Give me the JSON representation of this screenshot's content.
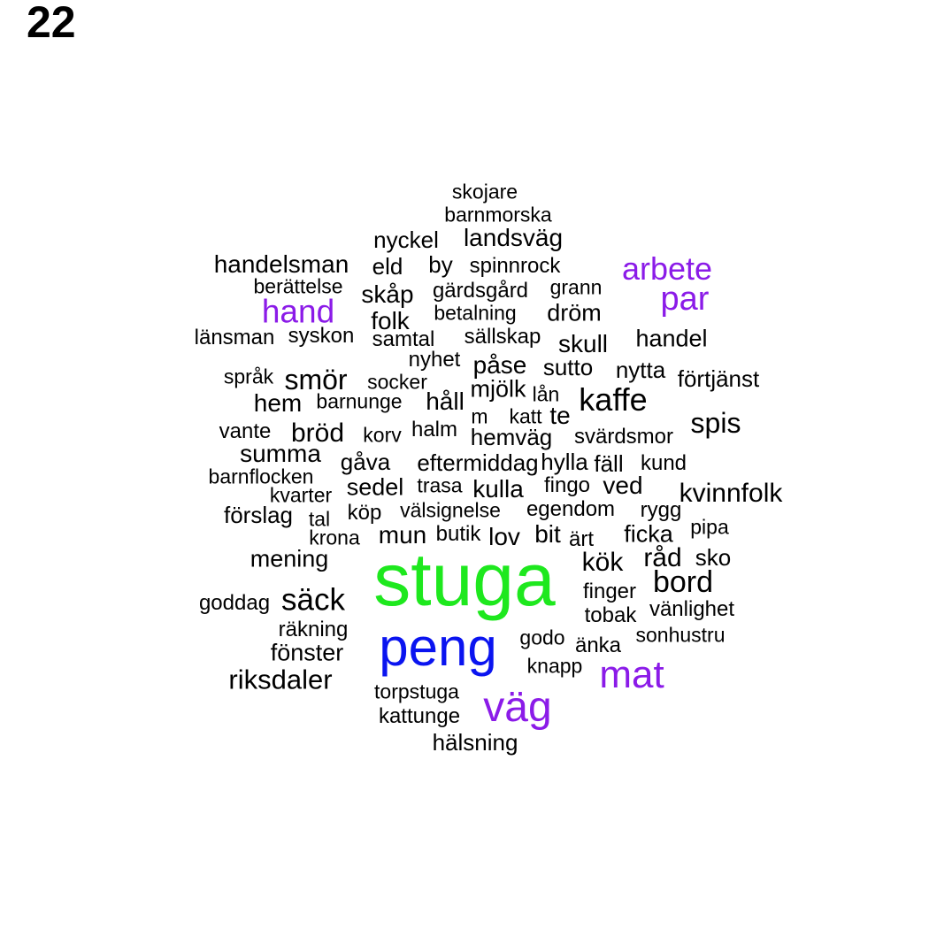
{
  "page_number": "22",
  "palette": {
    "black": "#000000",
    "purple": "#8b1be8",
    "blue": "#0a14f0",
    "green": "#1ee81e"
  },
  "words": [
    {
      "text": "stuga",
      "color": "green"
    },
    {
      "text": "peng",
      "color": "blue"
    },
    {
      "text": "väg",
      "color": "purple"
    },
    {
      "text": "mat",
      "color": "purple"
    },
    {
      "text": "par",
      "color": "purple"
    },
    {
      "text": "arbete",
      "color": "purple"
    },
    {
      "text": "hand",
      "color": "purple"
    },
    {
      "text": "kaffe",
      "color": "black"
    },
    {
      "text": "skojare",
      "color": "black"
    },
    {
      "text": "barnmorska",
      "color": "black"
    },
    {
      "text": "nyckel",
      "color": "black"
    },
    {
      "text": "landsväg",
      "color": "black"
    },
    {
      "text": "handelsman",
      "color": "black"
    },
    {
      "text": "eld",
      "color": "black"
    },
    {
      "text": "by",
      "color": "black"
    },
    {
      "text": "spinnrock",
      "color": "black"
    },
    {
      "text": "berättelse",
      "color": "black"
    },
    {
      "text": "skåp",
      "color": "black"
    },
    {
      "text": "gärdsgård",
      "color": "black"
    },
    {
      "text": "grann",
      "color": "black"
    },
    {
      "text": "folk",
      "color": "black"
    },
    {
      "text": "betalning",
      "color": "black"
    },
    {
      "text": "dröm",
      "color": "black"
    },
    {
      "text": "länsman",
      "color": "black"
    },
    {
      "text": "syskon",
      "color": "black"
    },
    {
      "text": "samtal",
      "color": "black"
    },
    {
      "text": "sällskap",
      "color": "black"
    },
    {
      "text": "skull",
      "color": "black"
    },
    {
      "text": "handel",
      "color": "black"
    },
    {
      "text": "nyhet",
      "color": "black"
    },
    {
      "text": "påse",
      "color": "black"
    },
    {
      "text": "sutto",
      "color": "black"
    },
    {
      "text": "nytta",
      "color": "black"
    },
    {
      "text": "språk",
      "color": "black"
    },
    {
      "text": "smör",
      "color": "black"
    },
    {
      "text": "socker",
      "color": "black"
    },
    {
      "text": "mjölk",
      "color": "black"
    },
    {
      "text": "lån",
      "color": "black"
    },
    {
      "text": "förtjänst",
      "color": "black"
    },
    {
      "text": "hem",
      "color": "black"
    },
    {
      "text": "barnunge",
      "color": "black"
    },
    {
      "text": "håll",
      "color": "black"
    },
    {
      "text": "m",
      "color": "black"
    },
    {
      "text": "katt",
      "color": "black"
    },
    {
      "text": "te",
      "color": "black"
    },
    {
      "text": "spis",
      "color": "black"
    },
    {
      "text": "vante",
      "color": "black"
    },
    {
      "text": "bröd",
      "color": "black"
    },
    {
      "text": "korv",
      "color": "black"
    },
    {
      "text": "halm",
      "color": "black"
    },
    {
      "text": "hemväg",
      "color": "black"
    },
    {
      "text": "svärdsmor",
      "color": "black"
    },
    {
      "text": "summa",
      "color": "black"
    },
    {
      "text": "gåva",
      "color": "black"
    },
    {
      "text": "eftermiddag",
      "color": "black"
    },
    {
      "text": "hylla",
      "color": "black"
    },
    {
      "text": "fäll",
      "color": "black"
    },
    {
      "text": "kund",
      "color": "black"
    },
    {
      "text": "barnflocken",
      "color": "black"
    },
    {
      "text": "kvarter",
      "color": "black"
    },
    {
      "text": "sedel",
      "color": "black"
    },
    {
      "text": "trasa",
      "color": "black"
    },
    {
      "text": "kulla",
      "color": "black"
    },
    {
      "text": "fingo",
      "color": "black"
    },
    {
      "text": "ved",
      "color": "black"
    },
    {
      "text": "kvinnfolk",
      "color": "black"
    },
    {
      "text": "förslag",
      "color": "black"
    },
    {
      "text": "tal",
      "color": "black"
    },
    {
      "text": "köp",
      "color": "black"
    },
    {
      "text": "välsignelse",
      "color": "black"
    },
    {
      "text": "egendom",
      "color": "black"
    },
    {
      "text": "rygg",
      "color": "black"
    },
    {
      "text": "pipa",
      "color": "black"
    },
    {
      "text": "krona",
      "color": "black"
    },
    {
      "text": "mun",
      "color": "black"
    },
    {
      "text": "butik",
      "color": "black"
    },
    {
      "text": "lov",
      "color": "black"
    },
    {
      "text": "bit",
      "color": "black"
    },
    {
      "text": "ärt",
      "color": "black"
    },
    {
      "text": "ficka",
      "color": "black"
    },
    {
      "text": "mening",
      "color": "black"
    },
    {
      "text": "kök",
      "color": "black"
    },
    {
      "text": "råd",
      "color": "black"
    },
    {
      "text": "sko",
      "color": "black"
    },
    {
      "text": "bord",
      "color": "black"
    },
    {
      "text": "goddag",
      "color": "black"
    },
    {
      "text": "säck",
      "color": "black"
    },
    {
      "text": "finger",
      "color": "black"
    },
    {
      "text": "tobak",
      "color": "black"
    },
    {
      "text": "vänlighet",
      "color": "black"
    },
    {
      "text": "räkning",
      "color": "black"
    },
    {
      "text": "godo",
      "color": "black"
    },
    {
      "text": "änka",
      "color": "black"
    },
    {
      "text": "sonhustru",
      "color": "black"
    },
    {
      "text": "fönster",
      "color": "black"
    },
    {
      "text": "knapp",
      "color": "black"
    },
    {
      "text": "riksdaler",
      "color": "black"
    },
    {
      "text": "torpstuga",
      "color": "black"
    },
    {
      "text": "kattunge",
      "color": "black"
    },
    {
      "text": "hälsning",
      "color": "black"
    }
  ]
}
